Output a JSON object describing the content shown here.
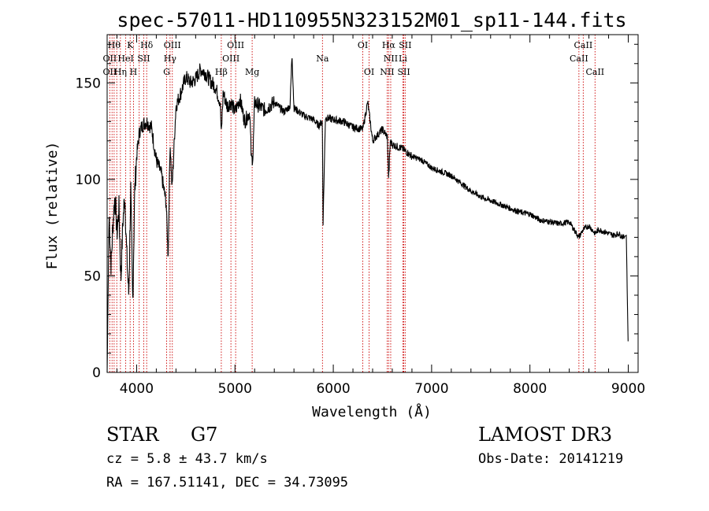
{
  "chart_data": {
    "type": "line",
    "title": "spec-57011-HD110955N323152M01_sp11-144.fits",
    "xlabel": "Wavelength (Å)",
    "ylabel": "Flux (relative)",
    "xlim": [
      3700,
      9100
    ],
    "ylim": [
      0,
      175
    ],
    "xticks": [
      4000,
      5000,
      6000,
      7000,
      8000,
      9000
    ],
    "yticks": [
      0,
      50,
      100,
      150
    ],
    "line_color": "#000000",
    "marker_color": "#cc0000",
    "spectrum_anchors": {
      "x": [
        3700,
        3720,
        3740,
        3760,
        3780,
        3800,
        3820,
        3840,
        3860,
        3880,
        3900,
        3920,
        3940,
        3960,
        3980,
        4000,
        4030,
        4060,
        4100,
        4150,
        4200,
        4250,
        4300,
        4320,
        4340,
        4360,
        4400,
        4450,
        4500,
        4550,
        4600,
        4650,
        4700,
        4750,
        4800,
        4850,
        4861,
        4880,
        4920,
        4960,
        5000,
        5050,
        5100,
        5150,
        5167,
        5183,
        5200,
        5250,
        5300,
        5400,
        5500,
        5560,
        5580,
        5600,
        5700,
        5800,
        5850,
        5889,
        5896,
        5920,
        6000,
        6100,
        6200,
        6300,
        6350,
        6400,
        6500,
        6550,
        6563,
        6580,
        6600,
        6700,
        6800,
        6900,
        7000,
        7100,
        7200,
        7300,
        7400,
        7500,
        7600,
        7700,
        7800,
        7900,
        8000,
        8100,
        8200,
        8300,
        8400,
        8498,
        8542,
        8600,
        8662,
        8700,
        8800,
        8850,
        8900,
        8950,
        8980,
        9000
      ],
      "y": [
        0,
        82,
        55,
        78,
        92,
        72,
        85,
        48,
        78,
        92,
        60,
        40,
        95,
        35,
        93,
        112,
        125,
        128,
        130,
        127,
        110,
        103,
        88,
        60,
        120,
        95,
        138,
        145,
        153,
        150,
        152,
        157,
        155,
        151,
        148,
        140,
        123,
        145,
        138,
        140,
        135,
        142,
        130,
        135,
        110,
        112,
        140,
        138,
        136,
        140,
        135,
        138,
        165,
        137,
        133,
        131,
        128,
        130,
        78,
        132,
        131,
        130,
        127,
        126,
        140,
        120,
        126,
        122,
        100,
        120,
        118,
        116,
        112,
        110,
        106,
        104,
        102,
        98,
        94,
        91,
        89,
        87,
        85,
        83,
        82,
        79,
        78,
        77,
        78,
        70,
        74,
        76,
        72,
        74,
        72,
        71,
        72,
        70,
        71,
        10
      ]
    },
    "line_markers": {
      "positions": [
        3727,
        3750,
        3771,
        3798,
        3835,
        3889,
        3934,
        3968,
        4026,
        4072,
        4102,
        4305,
        4340,
        4363,
        4861,
        4959,
        5007,
        5175,
        5890,
        6300,
        6364,
        6548,
        6563,
        6584,
        6708,
        6717,
        6731,
        8498,
        8542,
        8662
      ],
      "labels": [
        {
          "text": "Hθ",
          "x": 3771,
          "row": 0
        },
        {
          "text": "K",
          "x": 3934,
          "row": 0
        },
        {
          "text": "Hδ",
          "x": 4102,
          "row": 0
        },
        {
          "text": "OIII",
          "x": 4363,
          "row": 0
        },
        {
          "text": "OIII",
          "x": 5007,
          "row": 0
        },
        {
          "text": "OI",
          "x": 6300,
          "row": 0
        },
        {
          "text": "Hα",
          "x": 6563,
          "row": 0
        },
        {
          "text": "SII",
          "x": 6731,
          "row": 0
        },
        {
          "text": "CaII",
          "x": 8542,
          "row": 0
        },
        {
          "text": "OII",
          "x": 3727,
          "row": 1
        },
        {
          "text": "HeI",
          "x": 3889,
          "row": 1
        },
        {
          "text": "SII",
          "x": 4072,
          "row": 1
        },
        {
          "text": "Hγ",
          "x": 4340,
          "row": 1
        },
        {
          "text": "OIII",
          "x": 4959,
          "row": 1
        },
        {
          "text": "Na",
          "x": 5890,
          "row": 1
        },
        {
          "text": "NII",
          "x": 6584,
          "row": 1
        },
        {
          "text": "Li",
          "x": 6708,
          "row": 1
        },
        {
          "text": "CaII",
          "x": 8498,
          "row": 1
        },
        {
          "text": "OII",
          "x": 3727,
          "row": 2
        },
        {
          "text": "Hη",
          "x": 3835,
          "row": 2
        },
        {
          "text": "H",
          "x": 3968,
          "row": 2
        },
        {
          "text": "G",
          "x": 4305,
          "row": 2
        },
        {
          "text": "Hβ",
          "x": 4861,
          "row": 2
        },
        {
          "text": "Mg",
          "x": 5175,
          "row": 2
        },
        {
          "text": "OI",
          "x": 6364,
          "row": 2
        },
        {
          "text": "NII",
          "x": 6548,
          "row": 2
        },
        {
          "text": "SII",
          "x": 6717,
          "row": 2
        },
        {
          "text": "CaII",
          "x": 8662,
          "row": 2
        }
      ]
    }
  },
  "info": {
    "object_class": "STAR",
    "subclass": "G7",
    "redshift": "cz = 5.8 ± 43.7 km/s",
    "coords": "RA = 167.51141, DEC =  34.73095",
    "survey": "LAMOST DR3",
    "obs_date": "Obs-Date: 20141219"
  }
}
